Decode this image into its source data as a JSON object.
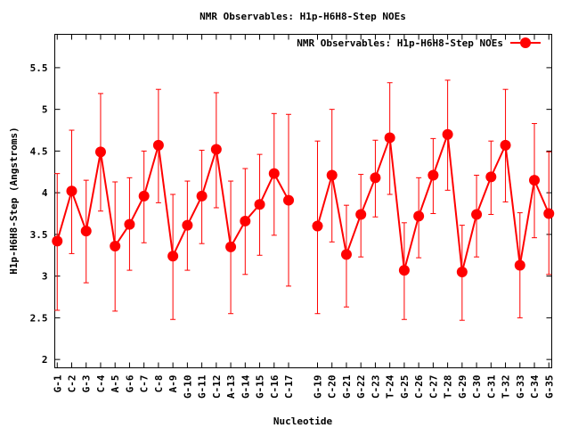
{
  "chart_data": {
    "type": "line",
    "title": "NMR Observables: H1p-H6H8-Step NOEs",
    "xlabel": "Nucleotide",
    "ylabel": "H1p-H6H8-Step (Angstroms)",
    "ylim": [
      1.9,
      5.9
    ],
    "xlim": [
      0.83,
      35.2
    ],
    "yticks": [
      2,
      2.5,
      3,
      3.5,
      4,
      4.5,
      5,
      5.5
    ],
    "ytick_labels": [
      "2",
      "2.5",
      "3",
      "3.5",
      "4",
      "4.5",
      "5",
      "5.5"
    ],
    "grid": false,
    "legend_position": "top-right",
    "series": [
      {
        "name": "NMR Observables: H1p-H6H8-Step NOEs",
        "color": "#ff0000",
        "marker": "circle",
        "points": [
          {
            "x": 1,
            "label": "G-1",
            "y": 3.42,
            "lo": 2.59,
            "hi": 4.23
          },
          {
            "x": 2,
            "label": "C-2",
            "y": 4.02,
            "lo": 3.27,
            "hi": 4.75
          },
          {
            "x": 3,
            "label": "G-3",
            "y": 3.54,
            "lo": 2.92,
            "hi": 4.15
          },
          {
            "x": 4,
            "label": "C-4",
            "y": 4.49,
            "lo": 3.78,
            "hi": 5.19
          },
          {
            "x": 5,
            "label": "A-5",
            "y": 3.36,
            "lo": 2.58,
            "hi": 4.13
          },
          {
            "x": 6,
            "label": "G-6",
            "y": 3.62,
            "lo": 3.07,
            "hi": 4.18
          },
          {
            "x": 7,
            "label": "C-7",
            "y": 3.96,
            "lo": 3.4,
            "hi": 4.5
          },
          {
            "x": 8,
            "label": "C-8",
            "y": 4.57,
            "lo": 3.88,
            "hi": 5.24
          },
          {
            "x": 9,
            "label": "A-9",
            "y": 3.24,
            "lo": 2.48,
            "hi": 3.98
          },
          {
            "x": 10,
            "label": "G-10",
            "y": 3.61,
            "lo": 3.07,
            "hi": 4.14
          },
          {
            "x": 11,
            "label": "G-11",
            "y": 3.96,
            "lo": 3.39,
            "hi": 4.51
          },
          {
            "x": 12,
            "label": "C-12",
            "y": 4.52,
            "lo": 3.82,
            "hi": 5.2
          },
          {
            "x": 13,
            "label": "A-13",
            "y": 3.35,
            "lo": 2.55,
            "hi": 4.14
          },
          {
            "x": 14,
            "label": "G-14",
            "y": 3.66,
            "lo": 3.02,
            "hi": 4.29
          },
          {
            "x": 15,
            "label": "G-15",
            "y": 3.86,
            "lo": 3.25,
            "hi": 4.46
          },
          {
            "x": 16,
            "label": "C-16",
            "y": 4.23,
            "lo": 3.49,
            "hi": 4.95
          },
          {
            "x": 17,
            "label": "C-17",
            "y": 3.91,
            "lo": 2.88,
            "hi": 4.94
          },
          {
            "x": 19,
            "label": "G-19",
            "y": 3.6,
            "lo": 2.55,
            "hi": 4.62
          },
          {
            "x": 20,
            "label": "C-20",
            "y": 4.21,
            "lo": 3.41,
            "hi": 5.0
          },
          {
            "x": 21,
            "label": "G-21",
            "y": 3.26,
            "lo": 2.63,
            "hi": 3.85
          },
          {
            "x": 22,
            "label": "G-22",
            "y": 3.74,
            "lo": 3.23,
            "hi": 4.22
          },
          {
            "x": 23,
            "label": "C-23",
            "y": 4.18,
            "lo": 3.71,
            "hi": 4.63
          },
          {
            "x": 24,
            "label": "T-24",
            "y": 4.66,
            "lo": 3.98,
            "hi": 5.32
          },
          {
            "x": 25,
            "label": "G-25",
            "y": 3.07,
            "lo": 2.48,
            "hi": 3.64
          },
          {
            "x": 26,
            "label": "C-26",
            "y": 3.72,
            "lo": 3.22,
            "hi": 4.18
          },
          {
            "x": 27,
            "label": "C-27",
            "y": 4.21,
            "lo": 3.75,
            "hi": 4.65
          },
          {
            "x": 28,
            "label": "T-28",
            "y": 4.7,
            "lo": 4.03,
            "hi": 5.35
          },
          {
            "x": 29,
            "label": "G-29",
            "y": 3.05,
            "lo": 2.47,
            "hi": 3.61
          },
          {
            "x": 30,
            "label": "C-30",
            "y": 3.74,
            "lo": 3.23,
            "hi": 4.21
          },
          {
            "x": 31,
            "label": "C-31",
            "y": 4.19,
            "lo": 3.74,
            "hi": 4.62
          },
          {
            "x": 32,
            "label": "T-32",
            "y": 4.57,
            "lo": 3.89,
            "hi": 5.24
          },
          {
            "x": 33,
            "label": "G-33",
            "y": 3.13,
            "lo": 2.5,
            "hi": 3.76
          },
          {
            "x": 34,
            "label": "C-34",
            "y": 4.15,
            "lo": 3.46,
            "hi": 4.83
          },
          {
            "x": 35,
            "label": "G-35",
            "y": 3.75,
            "lo": 3.02,
            "hi": 4.49
          }
        ]
      }
    ]
  }
}
